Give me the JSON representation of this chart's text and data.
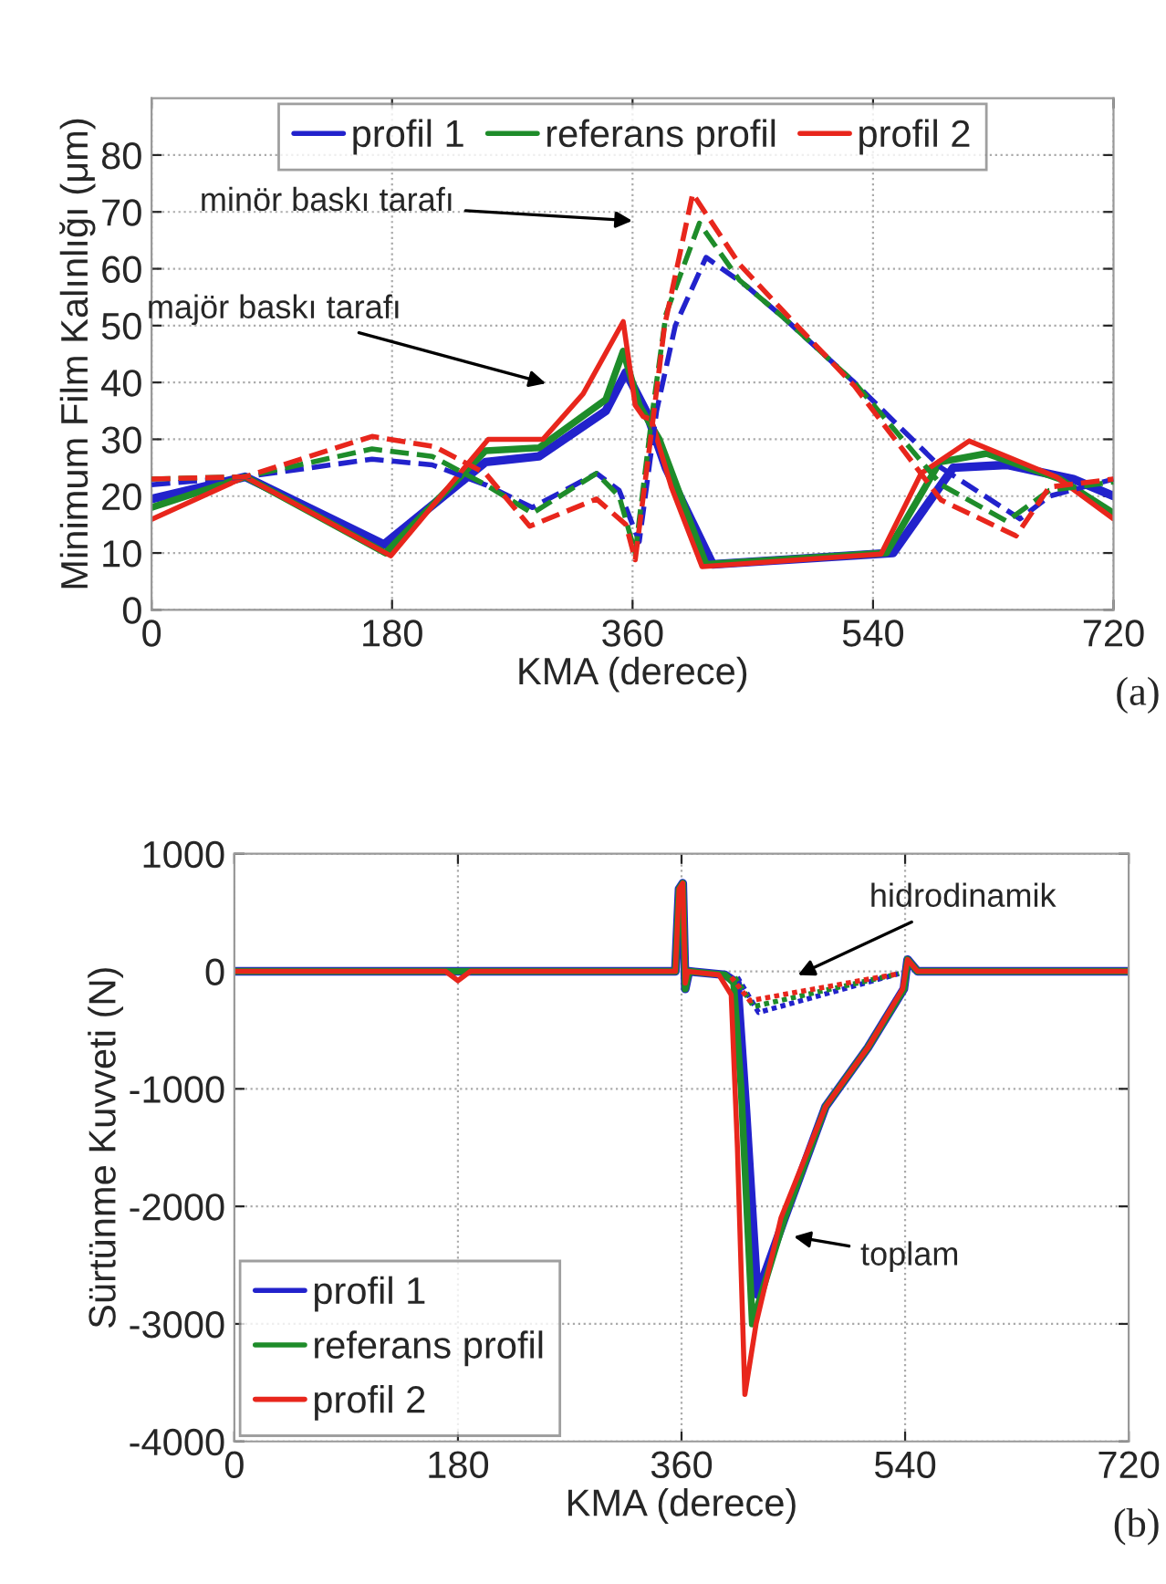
{
  "chart_data": [
    {
      "type": "line",
      "xlabel": "KMA (derece)",
      "ylabel": "Minimum Film Kalınlığı (μm)",
      "xlim": [
        0,
        720
      ],
      "xticks": [
        0,
        180,
        360,
        540,
        720
      ],
      "ylim": [
        0,
        90
      ],
      "yticks": [
        0,
        10,
        20,
        30,
        40,
        50,
        60,
        70,
        80
      ],
      "grid": true,
      "legend": "top",
      "marker": "none",
      "series": [
        {
          "name": "profil 1",
          "color": "#2222cc",
          "line_style": "solid",
          "x": [
            0,
            70,
            174,
            250,
            290,
            340,
            355,
            370,
            385,
            420,
            555,
            600,
            640,
            690,
            720
          ],
          "values": [
            19.5,
            23.4,
            11.5,
            26,
            27,
            35,
            41.8,
            35,
            25,
            8,
            10,
            25,
            25.5,
            23,
            20
          ]
        },
        {
          "name": "referans profil",
          "color": "#1e8c2a",
          "line_style": "solid",
          "x": [
            0,
            70,
            175,
            250,
            290,
            340,
            353,
            365,
            380,
            415,
            550,
            590,
            625,
            680,
            720
          ],
          "values": [
            18,
            23.4,
            10,
            28,
            28.5,
            37,
            45.5,
            36,
            30,
            8,
            10,
            26,
            27.5,
            23,
            17
          ]
        },
        {
          "name": "profil 2",
          "color": "#e8261c",
          "line_style": "solid",
          "x": [
            0,
            70,
            179,
            252,
            293,
            323,
            353,
            362,
            368,
            374,
            389,
            412,
            546,
            576,
            612,
            677,
            720
          ],
          "values": [
            15.9,
            23.4,
            9.5,
            30,
            30,
            38,
            50.7,
            36,
            34,
            33.5,
            21.6,
            7.6,
            9.8,
            24,
            29.7,
            23.4,
            16
          ]
        },
        {
          "color": "#2222cc",
          "line_style": "dashed",
          "x": [
            0,
            70,
            165,
            210,
            250,
            285,
            333,
            350,
            365,
            378,
            392,
            415,
            445,
            475,
            526,
            591,
            650,
            672,
            720
          ],
          "values": [
            22,
            23.4,
            26.5,
            25.5,
            22,
            18,
            24,
            21,
            12,
            35,
            50,
            62,
            57,
            51,
            40,
            25,
            16,
            20,
            23
          ]
        },
        {
          "color": "#1e8c2a",
          "line_style": "dashed",
          "x": [
            0,
            70,
            165,
            210,
            250,
            285,
            333,
            350,
            362,
            375,
            385,
            410,
            440,
            475,
            526,
            591,
            640,
            672,
            720
          ],
          "values": [
            23,
            23.4,
            28.3,
            27,
            22,
            17,
            24,
            20,
            10,
            35,
            52,
            68,
            58,
            51,
            40,
            22,
            15.6,
            21,
            22.5
          ]
        },
        {
          "color": "#e8261c",
          "line_style": "dashed",
          "x": [
            0,
            70,
            165,
            212,
            250,
            283,
            333,
            355,
            362,
            374,
            384,
            405,
            440,
            475,
            526,
            591,
            647,
            672,
            720
          ],
          "values": [
            23,
            23.4,
            30.5,
            28.7,
            24,
            14.7,
            19.5,
            15,
            8.8,
            31,
            50,
            73.2,
            60.8,
            52,
            39.4,
            19.3,
            13,
            21.6,
            23
          ]
        }
      ],
      "annotations": [
        "minör baskı tarafı",
        "majör baskı tarafı",
        "(a)"
      ]
    },
    {
      "type": "line",
      "xlabel": "KMA (derece)",
      "ylabel": "Sürtünme Kuvveti (N)",
      "xlim": [
        0,
        720
      ],
      "xticks": [
        0,
        180,
        360,
        540,
        720
      ],
      "ylim": [
        -4000,
        1000
      ],
      "yticks": [
        -4000,
        -3000,
        -2000,
        -1000,
        0,
        1000
      ],
      "grid": true,
      "legend": "bottom left",
      "marker": "none",
      "series": [
        {
          "color": "#2222cc",
          "line_style": "dotted",
          "x": [
            405,
            422,
            535
          ],
          "values": [
            -50,
            -350,
            -20
          ]
        },
        {
          "color": "#1e8c2a",
          "line_style": "dotted",
          "x": [
            403,
            418,
            535
          ],
          "values": [
            -50,
            -300,
            -20
          ]
        },
        {
          "color": "#e8261c",
          "line_style": "dotted",
          "x": [
            400,
            415,
            535
          ],
          "values": [
            -50,
            -250,
            -20
          ]
        },
        {
          "name": "profil 1",
          "color": "#2222cc",
          "line_style": "solid",
          "x": [
            0,
            355,
            358,
            361,
            363,
            366,
            395,
            405,
            412,
            421,
            443,
            476,
            510,
            539,
            542,
            550,
            720
          ],
          "values": [
            0,
            0,
            700,
            750,
            -150,
            0,
            -30,
            -100,
            -1200,
            -2750,
            -2100,
            -1150,
            -650,
            -150,
            100,
            0,
            0
          ]
        },
        {
          "name": "referans profil",
          "color": "#1e8c2a",
          "line_style": "solid",
          "x": [
            0,
            355,
            358,
            361,
            363,
            366,
            395,
            402,
            408,
            417,
            443,
            476,
            510,
            539,
            542,
            550,
            720
          ],
          "values": [
            0,
            0,
            700,
            750,
            -150,
            0,
            -30,
            -100,
            -1000,
            -3000,
            -2100,
            -1150,
            -650,
            -150,
            100,
            0,
            0
          ]
        },
        {
          "name": "profil 2",
          "color": "#e8261c",
          "line_style": "solid",
          "x": [
            0,
            170,
            180,
            190,
            355,
            358,
            361,
            363,
            365,
            390,
            400,
            405,
            411,
            420,
            440,
            476,
            510,
            538,
            542,
            550,
            720
          ],
          "values": [
            0,
            0,
            -80,
            0,
            0,
            700,
            750,
            -100,
            0,
            -30,
            -200,
            -1500,
            -3600,
            -3000,
            -2100,
            -1150,
            -650,
            -150,
            100,
            0,
            0
          ]
        }
      ],
      "annotations": [
        "hidrodinamik",
        "toplam",
        "(b)"
      ]
    }
  ]
}
